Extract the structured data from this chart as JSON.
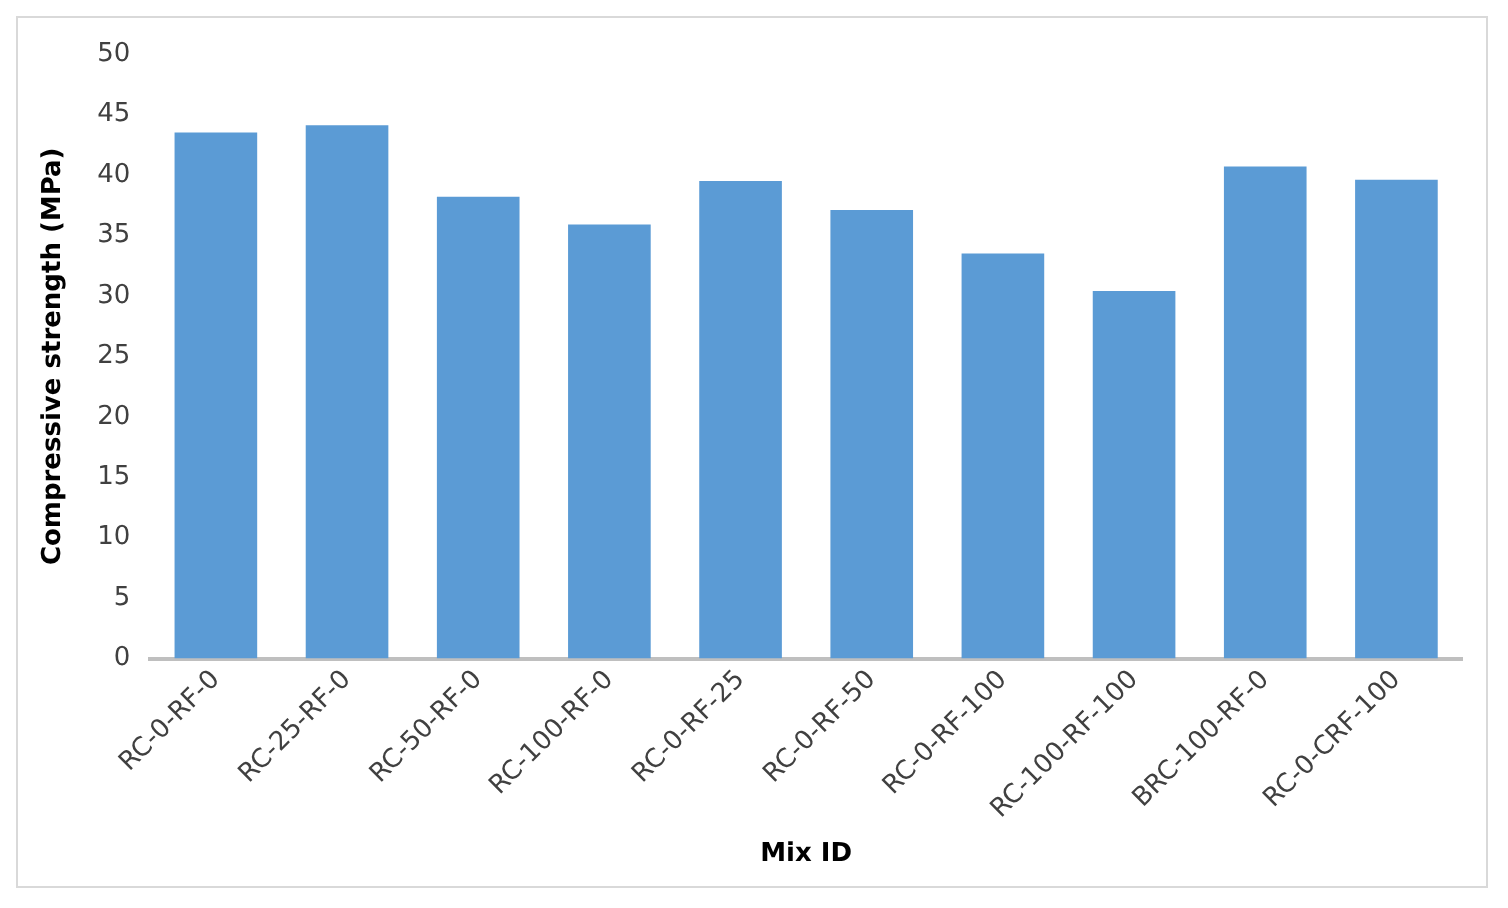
{
  "chart_data": {
    "type": "bar",
    "xlabel": "Mix ID",
    "ylabel": "Compressive strength (MPa)",
    "categories": [
      "RC-0-RF-0",
      "RC-25-RF-0",
      "RC-50-RF-0",
      "RC-100-RF-0",
      "RC-0-RF-25",
      "RC-0-RF-50",
      "RC-0-RF-100",
      "RC-100-RF-100",
      "BRC-100-RF-0",
      "RC-0-CRF-100"
    ],
    "values": [
      43.5,
      44.1,
      38.2,
      35.9,
      39.5,
      37.1,
      33.5,
      30.4,
      40.7,
      39.6
    ],
    "color": "#5b9bd5",
    "ylim": [
      0,
      50
    ],
    "yticks": [
      0,
      5,
      10,
      15,
      20,
      25,
      30,
      35,
      40,
      45,
      50
    ],
    "grid": false,
    "legend": false
  }
}
